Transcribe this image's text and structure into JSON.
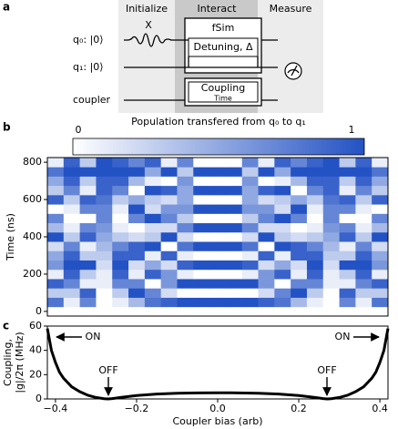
{
  "panel_labels": [
    "a",
    "b",
    "c"
  ],
  "diagram": {
    "columns": [
      "Initialize",
      "Interact",
      "Measure"
    ],
    "qubits": [
      "q₀: |0⟩",
      "q₁: |0⟩",
      "coupler"
    ],
    "pulse": "X",
    "gate": "fSim",
    "detuning": "Detuning, Δ",
    "coupling": "Coupling",
    "coupling_sub": "Time"
  },
  "chart_data": [
    {
      "type": "heatmap",
      "colorbar_label": "Population transfered from q₀ to q₁",
      "clim": [
        0,
        1
      ],
      "cticks": [
        0,
        1
      ],
      "cmap": [
        "#ffffff",
        "#2352c4"
      ],
      "ylabel": "Time (ns)",
      "x": [
        -0.4,
        -0.36,
        -0.32,
        -0.28,
        -0.24,
        -0.2,
        -0.16,
        -0.12,
        -0.08,
        -0.04,
        0,
        0.04,
        0.08,
        0.12,
        0.16,
        0.2,
        0.24,
        0.28,
        0.32,
        0.36,
        0.4
      ],
      "y": [
        0,
        50,
        100,
        150,
        200,
        250,
        300,
        350,
        400,
        450,
        500,
        550,
        600,
        650,
        700,
        750,
        800
      ],
      "z": [
        [
          0,
          0,
          0,
          0,
          0,
          0,
          0,
          0,
          0,
          0,
          0,
          0,
          0,
          0,
          0,
          0,
          0,
          0,
          0,
          0,
          0
        ],
        [
          0.8,
          0.1,
          0.7,
          0,
          0.1,
          0.4,
          0.8,
          0.9,
          1,
          1,
          1,
          1,
          1,
          0.9,
          0.8,
          0.4,
          0.1,
          0,
          0.7,
          0.1,
          0.8
        ],
        [
          0.3,
          0.3,
          0.9,
          0,
          0.3,
          1,
          0.7,
          0.2,
          0,
          0,
          0,
          0,
          0,
          0.2,
          0.7,
          1,
          0.3,
          0,
          0.9,
          0.3,
          0.3
        ],
        [
          0.9,
          0.7,
          0.1,
          0.1,
          0.7,
          0.7,
          0,
          0.6,
          1,
          1,
          1,
          1,
          1,
          0.6,
          0,
          0.7,
          0.7,
          0.1,
          0.1,
          0.7,
          0.9
        ],
        [
          0.1,
          0.9,
          0.3,
          0.1,
          0.9,
          0.1,
          0.9,
          0.6,
          0.1,
          0,
          0,
          0,
          0.1,
          0.6,
          0.9,
          0.1,
          0.9,
          0.1,
          0.3,
          0.9,
          0.1
        ],
        [
          0.6,
          1,
          1,
          0.2,
          1,
          0.2,
          0.5,
          0.2,
          0.9,
          1,
          1,
          1,
          0.9,
          0.2,
          0.5,
          0.2,
          1,
          0.2,
          1,
          1,
          0.6
        ],
        [
          0.5,
          0.9,
          0.3,
          0.3,
          0.9,
          0.9,
          0.1,
          0.9,
          0.1,
          0,
          0,
          0,
          0.1,
          0.9,
          0.1,
          0.9,
          0.9,
          0.3,
          0.3,
          0.9,
          0.5
        ],
        [
          0.2,
          0.7,
          0.1,
          0.4,
          0.7,
          0.9,
          1,
          0,
          0.8,
          1,
          1,
          1,
          0.8,
          0,
          1,
          0.9,
          0.7,
          0.4,
          0.1,
          0.7,
          0.2
        ],
        [
          1,
          0.3,
          0.9,
          0.5,
          0.3,
          0.2,
          0.3,
          1,
          0.2,
          0,
          0,
          0,
          0.2,
          1,
          0.3,
          0.2,
          0.3,
          0.5,
          0.9,
          0.3,
          1
        ],
        [
          0.4,
          0.1,
          0.7,
          0.6,
          0.1,
          0,
          0.2,
          0.2,
          0.7,
          1,
          1,
          1,
          0.7,
          0.2,
          0.2,
          0,
          0.1,
          0.6,
          0.7,
          0.1,
          0.4
        ],
        [
          0.7,
          0,
          0,
          0.7,
          0,
          0.7,
          1,
          0.7,
          0.3,
          0,
          0,
          0,
          0.3,
          0.7,
          1,
          0.7,
          0,
          0.7,
          0,
          0,
          0.7
        ],
        [
          0,
          0.1,
          0.7,
          0.7,
          0.1,
          1,
          0.2,
          0.6,
          0.6,
          1,
          1,
          1,
          0.6,
          0.6,
          0.2,
          1,
          0.1,
          0.7,
          0.7,
          0.1,
          0
        ],
        [
          0.9,
          0.3,
          0.9,
          0.8,
          0.3,
          0.5,
          0.3,
          0.2,
          0.5,
          0,
          0,
          0,
          0.5,
          0.2,
          0.3,
          0.5,
          0.3,
          0.8,
          0.9,
          0.3,
          0.9
        ],
        [
          0.3,
          0.7,
          0.1,
          0.9,
          0.7,
          0,
          1,
          0.9,
          0.5,
          1,
          1,
          1,
          0.5,
          0.9,
          1,
          0,
          0.7,
          0.9,
          0.1,
          0.7,
          0.3
        ],
        [
          0.5,
          0.9,
          0.3,
          0.9,
          0.9,
          0.4,
          0.1,
          0,
          0.6,
          0,
          0,
          0,
          0.6,
          0,
          0.1,
          0.4,
          0.9,
          0.9,
          0.3,
          0.9,
          0.5
        ],
        [
          0.8,
          1,
          1,
          1,
          1,
          1,
          0.5,
          1,
          0.3,
          1,
          1,
          1,
          0.3,
          1,
          0.5,
          1,
          1,
          1,
          1,
          1,
          0.8
        ],
        [
          0.1,
          0.9,
          0.3,
          1,
          0.9,
          0.7,
          0.9,
          0.1,
          0.7,
          0,
          0,
          0,
          0.7,
          0.1,
          0.9,
          0.7,
          0.9,
          1,
          0.3,
          0.9,
          0.1
        ]
      ],
      "xlim": [
        -0.42,
        0.42
      ],
      "ylim": [
        -25,
        825
      ],
      "yticks": [
        0,
        200,
        400,
        600,
        800
      ]
    },
    {
      "type": "line",
      "xlabel": "Coupler bias (arb)",
      "ylabel": [
        "Coupling,",
        "|g|/2π (MHz)"
      ],
      "x": [
        -0.42,
        -0.41,
        -0.4,
        -0.39,
        -0.38,
        -0.36,
        -0.34,
        -0.32,
        -0.3,
        -0.28,
        -0.27,
        -0.26,
        -0.24,
        -0.2,
        -0.15,
        -0.1,
        -0.05,
        0,
        0.05,
        0.1,
        0.15,
        0.2,
        0.24,
        0.26,
        0.27,
        0.28,
        0.3,
        0.32,
        0.34,
        0.36,
        0.38,
        0.39,
        0.4,
        0.41,
        0.42
      ],
      "values": [
        58,
        40,
        30,
        22,
        17,
        10,
        6,
        3,
        1.2,
        0.2,
        0,
        0.3,
        1.2,
        2.8,
        4,
        4.7,
        5,
        5.1,
        5,
        4.7,
        4,
        2.8,
        1.2,
        0.3,
        0,
        0.2,
        1.2,
        3,
        6,
        10,
        17,
        22,
        30,
        40,
        58
      ],
      "color": "#000000",
      "xlim": [
        -0.42,
        0.42
      ],
      "ylim": [
        0,
        60
      ],
      "xticks": [
        {
          "value": -0.4,
          "label": "−0.4"
        },
        {
          "value": -0.2,
          "label": "−0.2"
        },
        {
          "value": 0,
          "label": "0.0"
        },
        0.2,
        0.4
      ],
      "yticks": [
        0,
        20,
        40,
        60
      ],
      "annotations": [
        "ON",
        "ON",
        "OFF",
        "OFF"
      ]
    }
  ]
}
